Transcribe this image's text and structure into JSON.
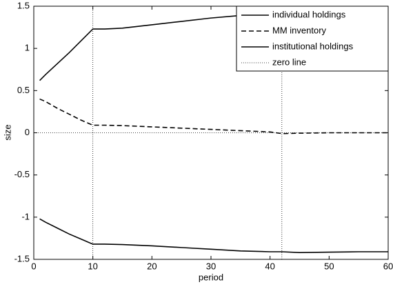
{
  "chart_data": {
    "type": "line",
    "x_label": "period",
    "y_label": "size",
    "x": [
      1,
      2,
      4,
      6,
      8,
      10,
      12,
      15,
      20,
      25,
      30,
      35,
      40,
      42,
      45,
      50,
      55,
      60
    ],
    "series": [
      {
        "name": "individual holdings",
        "color": "#000000",
        "style": "solid",
        "values": [
          0.62,
          0.69,
          0.82,
          0.95,
          1.09,
          1.23,
          1.23,
          1.24,
          1.28,
          1.32,
          1.36,
          1.39,
          1.41,
          1.42,
          1.42,
          1.42,
          1.42,
          1.42
        ]
      },
      {
        "name": "MM inventory",
        "color": "#000000",
        "style": "dashed",
        "values": [
          0.4,
          0.37,
          0.29,
          0.22,
          0.15,
          0.09,
          0.09,
          0.085,
          0.07,
          0.055,
          0.04,
          0.025,
          0.01,
          -0.01,
          -0.005,
          0,
          0,
          0
        ]
      },
      {
        "name": "institutional holdings",
        "color": "#000000",
        "style": "solid",
        "values": [
          -1.02,
          -1.06,
          -1.13,
          -1.2,
          -1.26,
          -1.32,
          -1.32,
          -1.325,
          -1.34,
          -1.36,
          -1.38,
          -1.4,
          -1.41,
          -1.41,
          -1.42,
          -1.415,
          -1.41,
          -1.41
        ]
      },
      {
        "name": "zero line",
        "color": "#000000",
        "style": "dotted",
        "x": [
          0,
          60
        ],
        "values": [
          0,
          0
        ]
      }
    ],
    "vlines": [
      10,
      42
    ],
    "xlim": [
      0,
      60
    ],
    "xticks": [
      0,
      10,
      20,
      30,
      40,
      50,
      60
    ],
    "ylim": [
      -1.5,
      1.5
    ],
    "yticks": [
      -1.5,
      -1,
      -0.5,
      0,
      0.5,
      1,
      1.5
    ],
    "legend": "top-right"
  }
}
